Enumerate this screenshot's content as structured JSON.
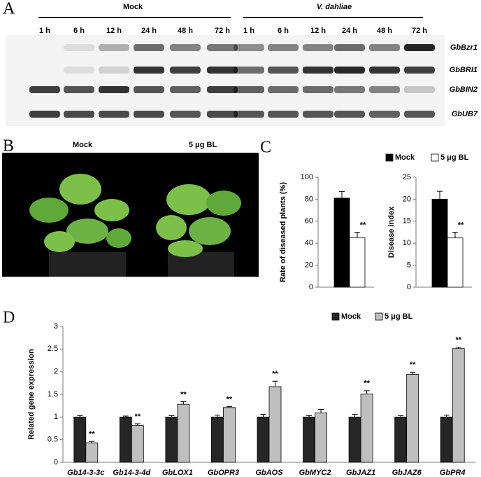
{
  "panels": [
    "A",
    "B",
    "C",
    "D"
  ],
  "blot": {
    "groups": [
      "Mock",
      "V. dahliae"
    ],
    "times": [
      "1 h",
      "6 h",
      "12 h",
      "24 h",
      "48 h",
      "72 h",
      "1 h",
      "6 h",
      "12 h",
      "24 h",
      "48 h",
      "72 h"
    ],
    "genes": [
      "GbBzr1",
      "GbBRI1",
      "GbBIN2",
      "GbUB7"
    ]
  },
  "photo": {
    "labels": [
      "Mock",
      "5 μg BL"
    ]
  },
  "chart_data": [
    {
      "type": "bar",
      "y_label": "Rate of diseased plants (%)",
      "series": [
        {
          "name": "Mock",
          "color": "#000000",
          "values": [
            81
          ],
          "errors": [
            6
          ]
        },
        {
          "name": "5 μg BL",
          "color": "#ffffff",
          "values": [
            45
          ],
          "errors": [
            5
          ]
        }
      ],
      "significance": [
        "**"
      ],
      "ylim": [
        0,
        100
      ],
      "yticks": [
        0,
        20,
        40,
        60,
        80,
        100
      ]
    },
    {
      "type": "bar",
      "y_label": "Disease index",
      "series": [
        {
          "color": "#000000",
          "values": [
            20
          ],
          "errors": [
            1.8
          ]
        },
        {
          "color": "#ffffff",
          "values": [
            11.2
          ],
          "errors": [
            1.3
          ]
        }
      ],
      "significance": [
        "**"
      ],
      "ylim": [
        0,
        25
      ],
      "yticks": [
        0,
        5,
        10,
        15,
        20,
        25
      ]
    },
    {
      "type": "bar",
      "y_label": "Related gene expression",
      "categories": [
        "Gb14-3-3c",
        "Gb14-3-4d",
        "GbLOX1",
        "GbOPR3",
        "GbAOS",
        "GbMYC2",
        "GbJAZ1",
        "GbJAZ6",
        "GbPR4"
      ],
      "series": [
        {
          "name": "Mock",
          "color": "#262626",
          "values": [
            1,
            1,
            1,
            1,
            1,
            1,
            1,
            1,
            1
          ],
          "errors": [
            0.03,
            0.02,
            0.03,
            0.04,
            0.06,
            0.03,
            0.06,
            0.03,
            0.04
          ]
        },
        {
          "name": "5 μg BL",
          "color": "#bfbfbf",
          "values": [
            0.43,
            0.81,
            1.28,
            1.21,
            1.67,
            1.09,
            1.51,
            1.94,
            2.51
          ],
          "errors": [
            0.03,
            0.04,
            0.06,
            0.02,
            0.12,
            0.08,
            0.07,
            0.05,
            0.03
          ]
        }
      ],
      "significance": [
        "**",
        "**",
        "**",
        "**",
        "**",
        null,
        "**",
        "**",
        "**"
      ],
      "ylim": [
        0,
        3
      ],
      "yticks": [
        0,
        0.5,
        1,
        1.5,
        2,
        2.5,
        3
      ]
    }
  ]
}
